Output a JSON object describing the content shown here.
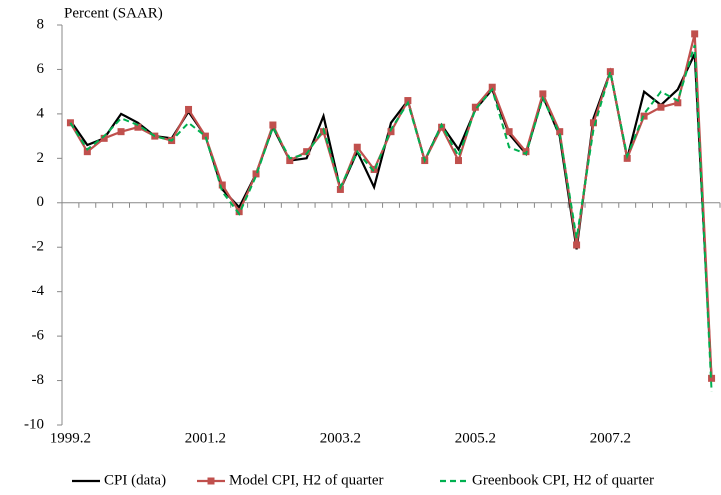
{
  "chart_data": {
    "type": "line",
    "title": "Percent (SAAR)",
    "categories": [
      "1999.2",
      null,
      null,
      null,
      null,
      null,
      null,
      null,
      "2001.2",
      null,
      null,
      null,
      null,
      null,
      null,
      null,
      "2003.2",
      null,
      null,
      null,
      null,
      null,
      null,
      null,
      "2005.2",
      null,
      null,
      null,
      null,
      null,
      null,
      null,
      "2007.2",
      null,
      null,
      null,
      null,
      null,
      null
    ],
    "ylim": [
      -10,
      8
    ],
    "yticks": [
      -10,
      -8,
      -6,
      -4,
      -2,
      0,
      2,
      4,
      6,
      8
    ],
    "grid": false,
    "legend": "bottom",
    "series": [
      {
        "name": "CPI (data)",
        "color": "#000000",
        "dash": false,
        "marker": "none",
        "values": [
          3.7,
          2.6,
          2.9,
          4.0,
          3.6,
          3.0,
          2.9,
          4.1,
          3.0,
          0.6,
          -0.2,
          1.3,
          3.4,
          1.9,
          2.0,
          3.9,
          0.6,
          2.3,
          0.7,
          3.6,
          4.6,
          1.9,
          3.5,
          2.4,
          4.2,
          5.1,
          3.1,
          2.2,
          4.8,
          3.0,
          -2.1,
          3.8,
          5.9,
          2.0,
          5.0,
          4.4,
          5.1,
          6.7,
          -8.0
        ]
      },
      {
        "name": "Model CPI, H2 of quarter",
        "color": "#c0504d",
        "dash": false,
        "marker": "square",
        "values": [
          3.6,
          2.3,
          2.9,
          3.2,
          3.4,
          3.0,
          2.8,
          4.2,
          3.0,
          0.8,
          -0.4,
          1.3,
          3.5,
          1.9,
          2.3,
          3.2,
          0.6,
          2.5,
          1.5,
          3.2,
          4.6,
          1.9,
          3.4,
          1.9,
          4.3,
          5.2,
          3.2,
          2.3,
          4.9,
          3.2,
          -1.9,
          3.6,
          5.9,
          2.0,
          3.9,
          4.3,
          4.5,
          7.6,
          -7.9
        ]
      },
      {
        "name": "Greenbook CPI, H2 of quarter",
        "color": "#00b050",
        "dash": true,
        "marker": "none",
        "values": [
          3.6,
          2.4,
          3.0,
          3.8,
          3.5,
          3.0,
          2.8,
          3.6,
          3.0,
          0.5,
          -0.5,
          1.2,
          3.4,
          2.0,
          2.2,
          3.3,
          0.7,
          2.3,
          1.4,
          3.3,
          4.5,
          1.9,
          3.5,
          2.1,
          4.2,
          5.1,
          2.5,
          2.2,
          4.7,
          3.1,
          -1.6,
          3.3,
          5.9,
          2.1,
          4.0,
          5.0,
          4.6,
          7.1,
          -8.5
        ]
      }
    ]
  }
}
